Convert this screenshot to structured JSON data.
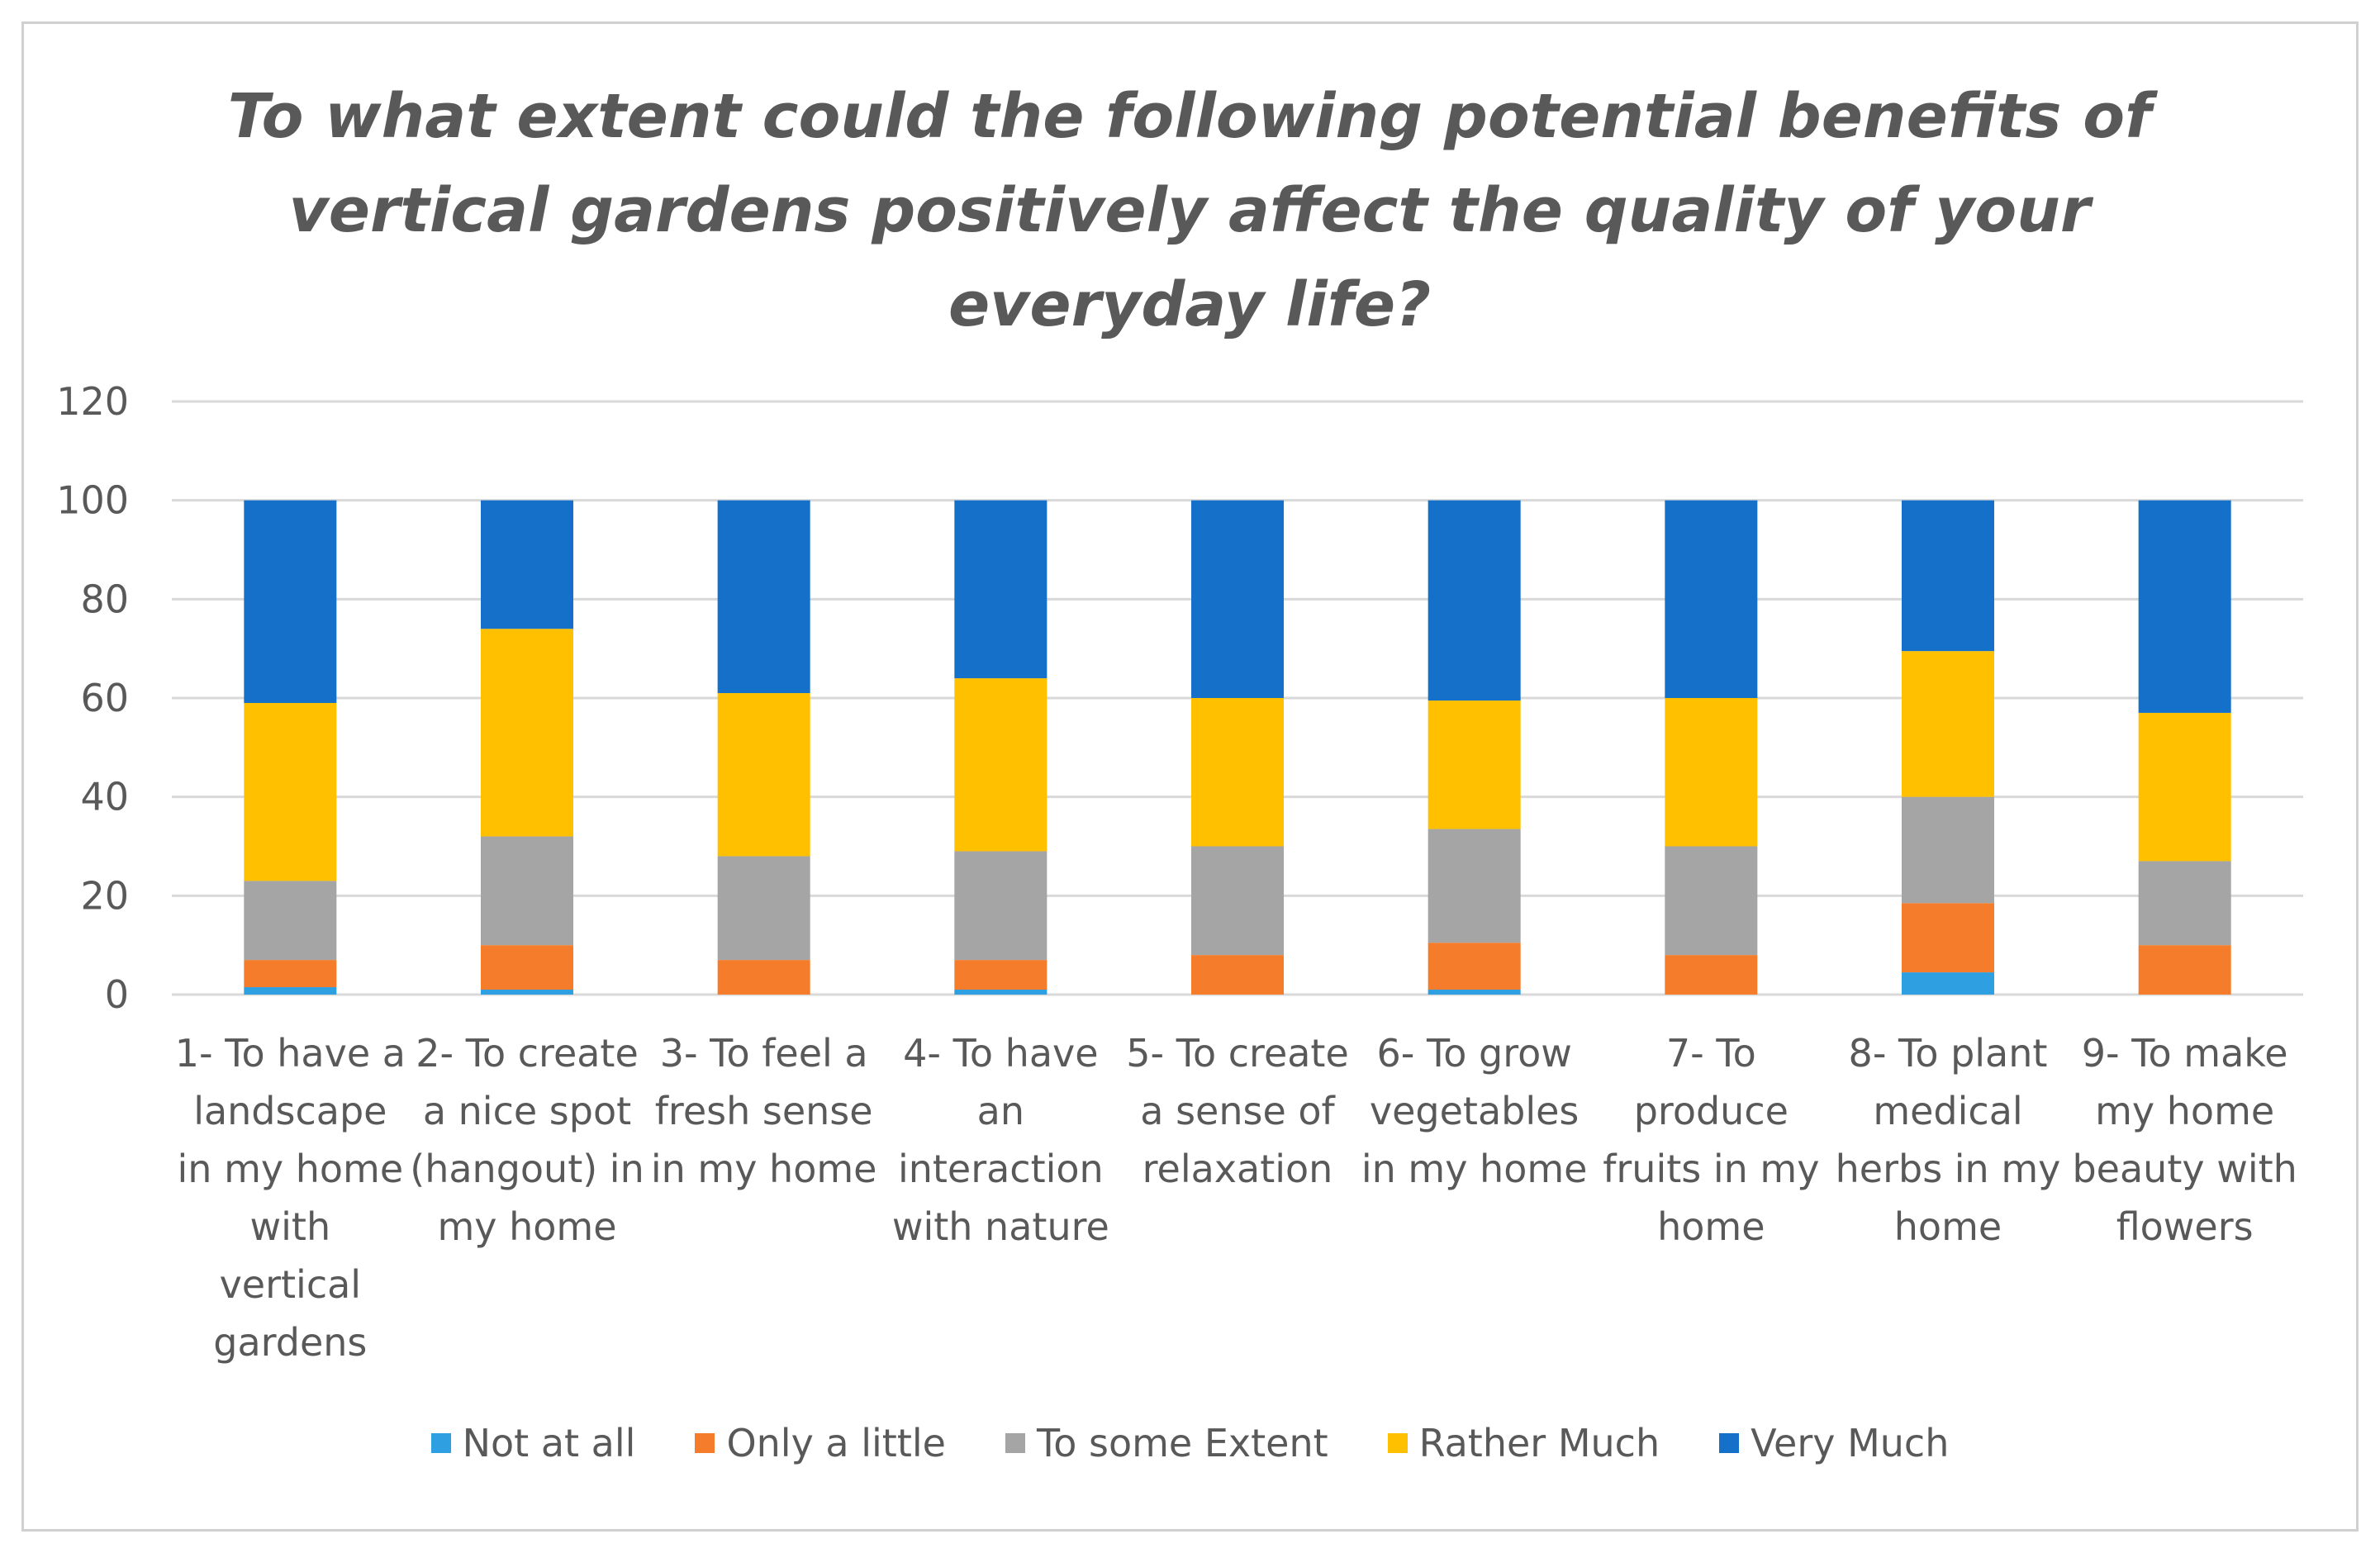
{
  "chart_data": {
    "type": "bar",
    "stacked": true,
    "title": "To what extent could the following potential benefits of vertical gardens positively affect the quality of your everyday life?",
    "xlabel": "",
    "ylabel": "",
    "ylim": [
      0,
      120
    ],
    "yticks": [
      0,
      20,
      40,
      60,
      80,
      100,
      120
    ],
    "grid": true,
    "legend_position": "bottom",
    "categories": [
      "1- To have a landscape in my home with vertical gardens",
      "2- To create a nice spot (hangout) in my home",
      "3- To feel a fresh sense in my home",
      "4- To have an interaction with nature",
      "5- To create a sense of relaxation",
      "6- To grow vegetables in my home",
      "7- To produce fruits in my home",
      "8- To plant medical herbs in my home",
      "9- To make my home beauty with flowers"
    ],
    "category_lines": [
      [
        "1- To have a",
        "landscape",
        "in my home",
        "with",
        "vertical",
        "gardens"
      ],
      [
        "2- To create",
        "a nice spot",
        "(hangout) in",
        "my home"
      ],
      [
        "3- To feel a",
        "fresh sense",
        "in my home"
      ],
      [
        "4- To have",
        "an",
        "interaction",
        "with nature"
      ],
      [
        "5- To create",
        "a sense of",
        "relaxation"
      ],
      [
        "6- To grow",
        "vegetables",
        "in my home"
      ],
      [
        "7- To",
        "produce",
        "fruits in my",
        "home"
      ],
      [
        "8- To plant",
        "medical",
        "herbs in my",
        "home"
      ],
      [
        "9- To make",
        "my home",
        "beauty with",
        "flowers"
      ]
    ],
    "series": [
      {
        "name": "Not at all",
        "color": "#2e9fe0",
        "values": [
          1.5,
          1,
          0,
          1,
          0,
          1,
          0,
          4.5,
          0
        ]
      },
      {
        "name": "Only a little",
        "color": "#f47c2a",
        "values": [
          5.5,
          9,
          7,
          6,
          8,
          9.5,
          8,
          14,
          10
        ]
      },
      {
        "name": "To some Extent",
        "color": "#a5a5a5",
        "values": [
          16,
          22,
          21,
          22,
          22,
          23,
          22,
          21.5,
          17
        ]
      },
      {
        "name": "Rather Much",
        "color": "#ffc000",
        "values": [
          36,
          42,
          33,
          35,
          30,
          26,
          30,
          29.5,
          30
        ]
      },
      {
        "name": "Very Much",
        "color": "#1470c8",
        "values": [
          41,
          26,
          39,
          36,
          40,
          40.5,
          40,
          30.5,
          43
        ]
      }
    ]
  }
}
